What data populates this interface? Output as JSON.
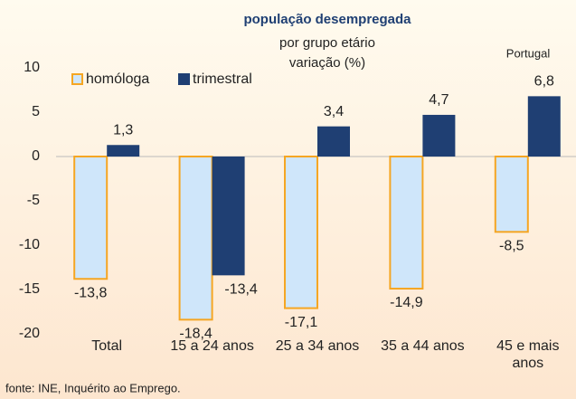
{
  "chart_data": {
    "type": "bar",
    "title": "população desempregada",
    "subtitle": [
      "por grupo etário",
      "variação (%)"
    ],
    "annotation": "Portugal",
    "source": "fonte: INE, Inquérito ao Emprego.",
    "categories": [
      "Total",
      "15 a 24 anos",
      "25 a 34 anos",
      "35 a 44 anos",
      "45 e mais anos"
    ],
    "series": [
      {
        "name": "homóloga",
        "color": "#cfe6fa",
        "edge": "#f5a623",
        "values": [
          -13.8,
          -18.4,
          -17.1,
          -14.9,
          -8.5
        ],
        "value_labels": [
          "-13,8",
          "-18,4",
          "-17,1",
          "-14,9",
          "-8,5"
        ]
      },
      {
        "name": "trimestral",
        "color": "#1f3f73",
        "values": [
          1.3,
          -13.4,
          3.4,
          4.7,
          6.8
        ],
        "value_labels": [
          "1,3",
          "-13,4",
          "3,4",
          "4,7",
          "6,8"
        ]
      }
    ],
    "ylim": [
      -20,
      10
    ],
    "yticks": [
      -20,
      -15,
      -10,
      -5,
      0,
      5,
      10
    ],
    "grid": false,
    "legend": "top-left"
  }
}
